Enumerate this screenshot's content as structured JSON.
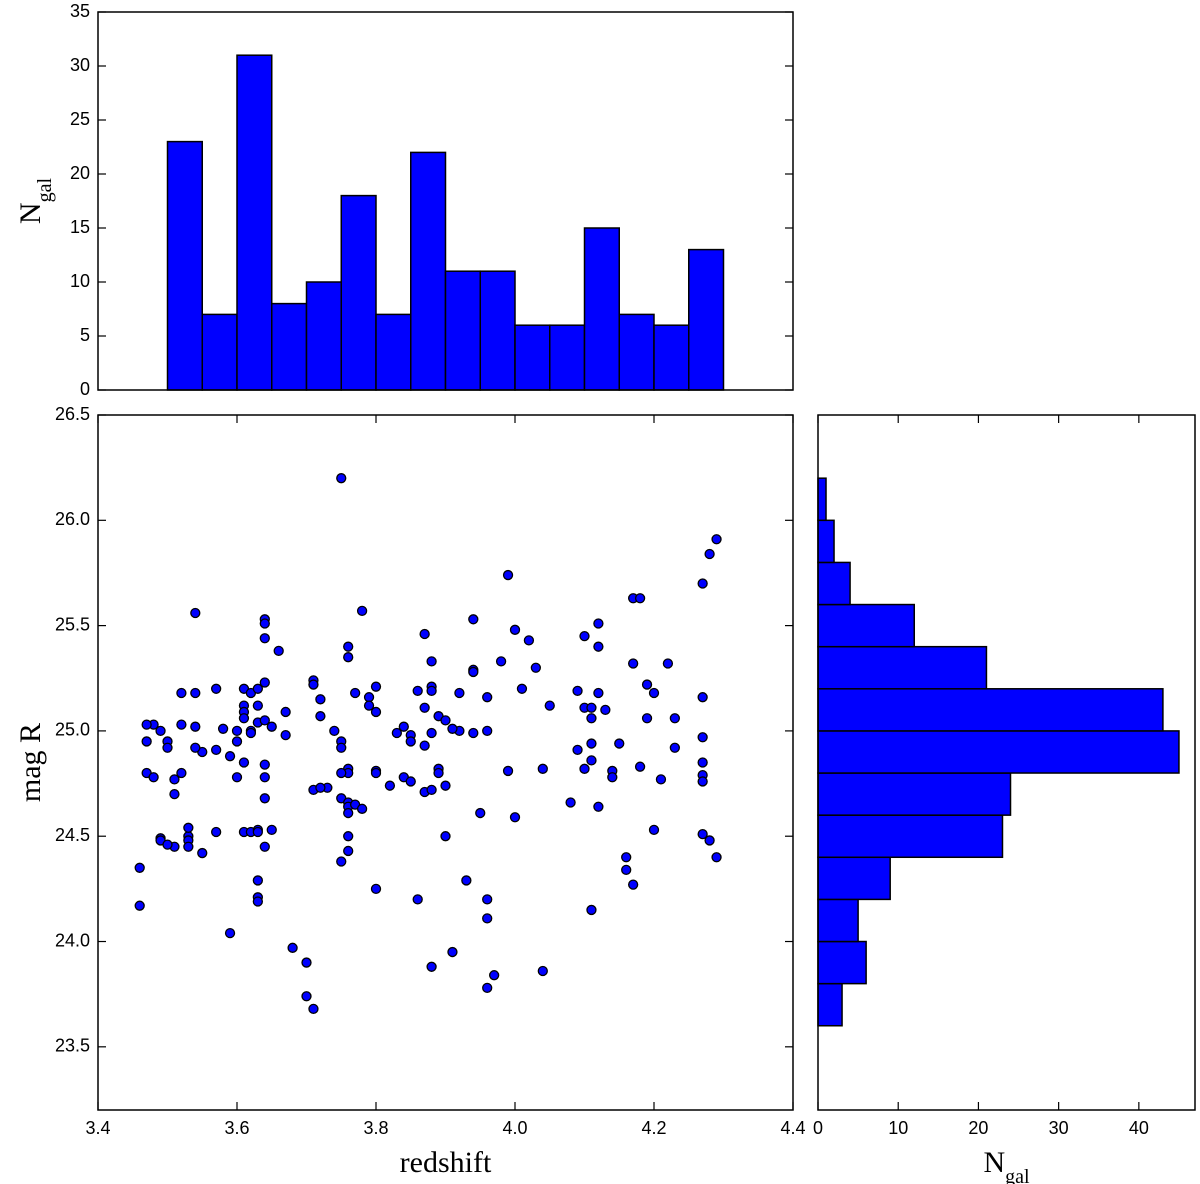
{
  "chart_data": [
    {
      "type": "histogram",
      "orientation": "vertical",
      "color": "#0000ff",
      "edgecolor": "#000000",
      "ylabel": [
        "N",
        "gal"
      ],
      "bins": [
        3.5,
        3.55,
        3.6,
        3.65,
        3.7,
        3.75,
        3.8,
        3.85,
        3.9,
        3.95,
        4.0,
        4.05,
        4.1,
        4.15,
        4.2,
        4.25,
        4.3
      ],
      "values": [
        23,
        7,
        31,
        8,
        10,
        18,
        7,
        22,
        11,
        11,
        6,
        6,
        15,
        7,
        6,
        13
      ],
      "xlim": [
        3.4,
        4.4
      ],
      "ylim": [
        0,
        35
      ],
      "yticks": [
        0,
        5,
        10,
        15,
        20,
        25,
        30,
        35
      ]
    },
    {
      "type": "scatter",
      "color": "#0000ff",
      "edgecolor": "#000000",
      "xlabel": "redshift",
      "ylabel": "mag R",
      "x": [
        3.75,
        4.29,
        4.28,
        4.27,
        3.99,
        4.17,
        4.18,
        3.54,
        3.78,
        3.64,
        3.64,
        3.94,
        4.12,
        3.87,
        4.1,
        4.0,
        4.02,
        3.64,
        4.12,
        3.76,
        3.76,
        3.66,
        3.88,
        3.98,
        4.03,
        3.94,
        3.94,
        4.17,
        4.22,
        3.57,
        3.61,
        3.62,
        3.63,
        3.61,
        3.64,
        3.63,
        3.61,
        3.61,
        3.71,
        3.71,
        4.19,
        3.8,
        3.88,
        3.88,
        3.86,
        3.92,
        3.96,
        4.01,
        4.09,
        4.12,
        4.2,
        4.27,
        3.77,
        3.52,
        3.54,
        3.79,
        3.79,
        3.8,
        3.72,
        3.72,
        3.67,
        3.87,
        3.89,
        3.9,
        3.92,
        3.94,
        3.96,
        3.91,
        4.05,
        4.1,
        4.11,
        4.11,
        4.13,
        4.19,
        4.23,
        3.48,
        3.47,
        3.52,
        3.49,
        3.54,
        3.58,
        3.63,
        3.65,
        3.64,
        3.62,
        3.67,
        3.6,
        3.62,
        3.6,
        3.84,
        3.85,
        3.85,
        3.88,
        3.87,
        3.83,
        3.74,
        3.75,
        3.75,
        4.27,
        4.27,
        4.23,
        4.15,
        3.5,
        3.47,
        3.5,
        3.55,
        3.54,
        3.57,
        4.09,
        4.11,
        4.11,
        4.1,
        4.14,
        4.14,
        3.61,
        3.6,
        3.64,
        3.64,
        3.59,
        3.76,
        3.76,
        3.8,
        3.8,
        3.75,
        3.99,
        4.04,
        4.18,
        3.47,
        3.48,
        3.52,
        3.51,
        3.51,
        3.89,
        3.89,
        3.9,
        3.87,
        3.84,
        3.85,
        3.88,
        3.82,
        4.27,
        4.27,
        4.21,
        3.71,
        3.73,
        3.75,
        3.76,
        3.76,
        3.76,
        3.77,
        3.78,
        3.64,
        4.08,
        4.12,
        4.0,
        3.95,
        3.72,
        3.49,
        3.49,
        3.53,
        3.53,
        3.53,
        3.61,
        3.62,
        3.63,
        3.63,
        3.65,
        3.64,
        3.9,
        4.2,
        4.27,
        4.28,
        3.53,
        3.76,
        3.76,
        3.57,
        3.51,
        3.5,
        3.75,
        4.29,
        4.16,
        3.55,
        3.46,
        4.16,
        4.17,
        3.93,
        3.63,
        3.8,
        3.86,
        3.96,
        3.96,
        3.63,
        3.63,
        3.46,
        4.11,
        3.59,
        3.68,
        3.7,
        3.91,
        3.88,
        4.04,
        3.97,
        3.7,
        3.71,
        3.96
      ],
      "values": [
        26.2,
        25.91,
        25.84,
        25.7,
        25.74,
        25.63,
        25.63,
        25.56,
        25.57,
        25.53,
        25.51,
        25.53,
        25.51,
        25.46,
        25.45,
        25.48,
        25.43,
        25.44,
        25.4,
        25.4,
        25.35,
        25.38,
        25.33,
        25.33,
        25.3,
        25.29,
        25.28,
        25.32,
        25.32,
        25.2,
        25.2,
        25.18,
        25.12,
        25.12,
        25.23,
        25.2,
        25.09,
        25.06,
        25.24,
        25.22,
        25.22,
        25.21,
        25.21,
        25.19,
        25.19,
        25.18,
        25.16,
        25.2,
        25.19,
        25.18,
        25.18,
        25.16,
        25.18,
        25.18,
        25.18,
        25.16,
        25.12,
        25.09,
        25.15,
        25.07,
        25.09,
        25.11,
        25.07,
        25.05,
        25.0,
        24.99,
        25.0,
        25.01,
        25.12,
        25.11,
        25.11,
        25.06,
        25.1,
        25.06,
        25.06,
        25.03,
        25.03,
        25.03,
        25.0,
        25.02,
        25.01,
        25.04,
        25.02,
        25.05,
        25.0,
        24.98,
        25.0,
        24.99,
        24.95,
        25.02,
        24.98,
        24.95,
        24.99,
        24.93,
        24.99,
        25.0,
        24.95,
        24.92,
        24.97,
        24.85,
        24.92,
        24.94,
        24.95,
        24.95,
        24.92,
        24.9,
        24.92,
        24.91,
        24.91,
        24.94,
        24.86,
        24.82,
        24.81,
        24.78,
        24.85,
        24.78,
        24.84,
        24.78,
        24.88,
        24.82,
        24.8,
        24.81,
        24.8,
        24.8,
        24.81,
        24.82,
        24.83,
        24.8,
        24.78,
        24.8,
        24.77,
        24.7,
        24.82,
        24.8,
        24.74,
        24.71,
        24.78,
        24.76,
        24.72,
        24.74,
        24.79,
        24.76,
        24.77,
        24.72,
        24.73,
        24.68,
        24.66,
        24.64,
        24.61,
        24.65,
        24.63,
        24.68,
        24.66,
        24.64,
        24.59,
        24.61,
        24.73,
        24.49,
        24.48,
        24.5,
        24.48,
        24.45,
        24.52,
        24.52,
        24.53,
        24.52,
        24.53,
        24.45,
        24.5,
        24.53,
        24.51,
        24.48,
        24.54,
        24.5,
        24.43,
        24.52,
        24.45,
        24.46,
        24.38,
        24.4,
        24.4,
        24.42,
        24.35,
        24.34,
        24.27,
        24.29,
        24.29,
        24.25,
        24.2,
        24.2,
        24.11,
        24.21,
        24.19,
        24.17,
        24.15,
        24.04,
        23.97,
        23.9,
        23.95,
        23.88,
        23.86,
        23.84,
        23.74,
        23.68,
        23.78
      ],
      "xlim": [
        3.4,
        4.4
      ],
      "xticks": [
        3.4,
        3.6,
        3.8,
        {
          "value": 4.0,
          "label": "4.0"
        },
        4.2,
        4.4
      ],
      "ylim": [
        23.2,
        26.5
      ],
      "yticks": [
        23.5,
        {
          "value": 24.0,
          "label": "24.0"
        },
        24.5,
        {
          "value": 25.0,
          "label": "25.0"
        },
        25.5,
        {
          "value": 26.0,
          "label": "26.0"
        },
        26.5
      ]
    },
    {
      "type": "histogram",
      "orientation": "horizontal",
      "color": "#0000ff",
      "edgecolor": "#000000",
      "xlabel": [
        "N",
        "gal"
      ],
      "bins": [
        23.6,
        23.8,
        24.0,
        24.2,
        24.4,
        24.6,
        24.8,
        25.0,
        25.2,
        25.4,
        25.6,
        25.8,
        26.0,
        26.2
      ],
      "values": [
        3,
        6,
        5,
        9,
        23,
        24,
        45,
        43,
        21,
        12,
        4,
        2,
        1
      ],
      "xlim": [
        0,
        47
      ],
      "xticks": [
        0,
        10,
        20,
        30,
        40
      ],
      "ylim": [
        23.2,
        26.5
      ]
    }
  ]
}
